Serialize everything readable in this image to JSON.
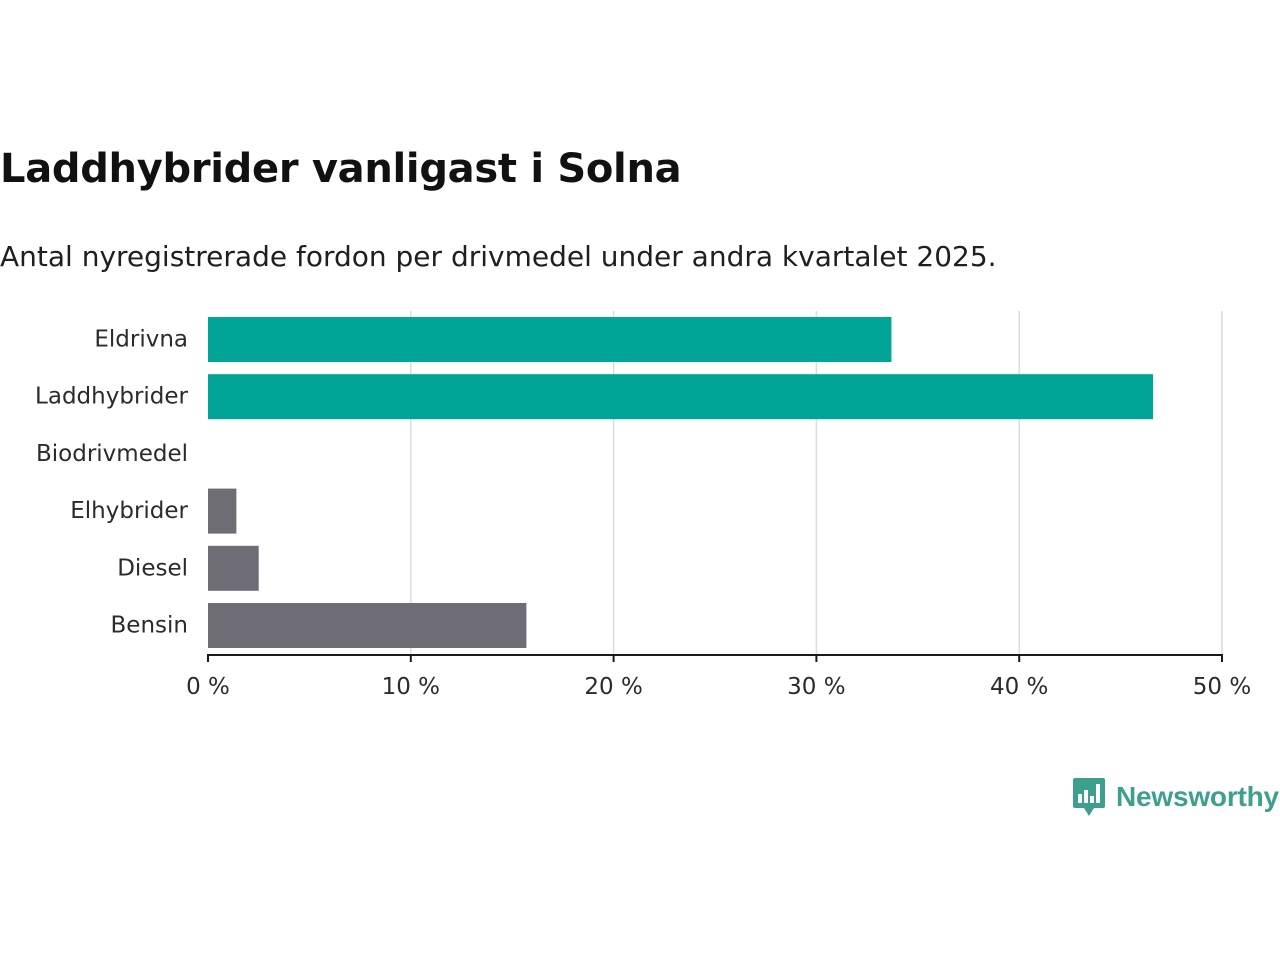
{
  "chart_data": {
    "type": "bar",
    "orientation": "horizontal",
    "title": "Laddhybrider vanligast i Solna",
    "subtitle": "Antal nyregistrerade fordon per drivmedel under andra kvartalet 2025.",
    "categories": [
      "Eldrivna",
      "Laddhybrider",
      "Biodrivmedel",
      "Elhybrider",
      "Diesel",
      "Bensin"
    ],
    "values": [
      33.7,
      46.6,
      0,
      1.4,
      2.5,
      15.7
    ],
    "colors": [
      "#00a597",
      "#00a597",
      "#6e6d75",
      "#6e6d75",
      "#6e6d75",
      "#6e6d75"
    ],
    "xlim": [
      0,
      50
    ],
    "xticks": [
      0,
      10,
      20,
      30,
      40,
      50
    ],
    "xtick_labels": [
      "0 %",
      "10 %",
      "20 %",
      "30 %",
      "40 %",
      "50 %"
    ],
    "xlabel": "",
    "ylabel": "",
    "grid": "vertical"
  },
  "branding": {
    "name": "Newsworthy",
    "icon": "newsworthy-logo-icon",
    "color": "#3f9f8f"
  }
}
